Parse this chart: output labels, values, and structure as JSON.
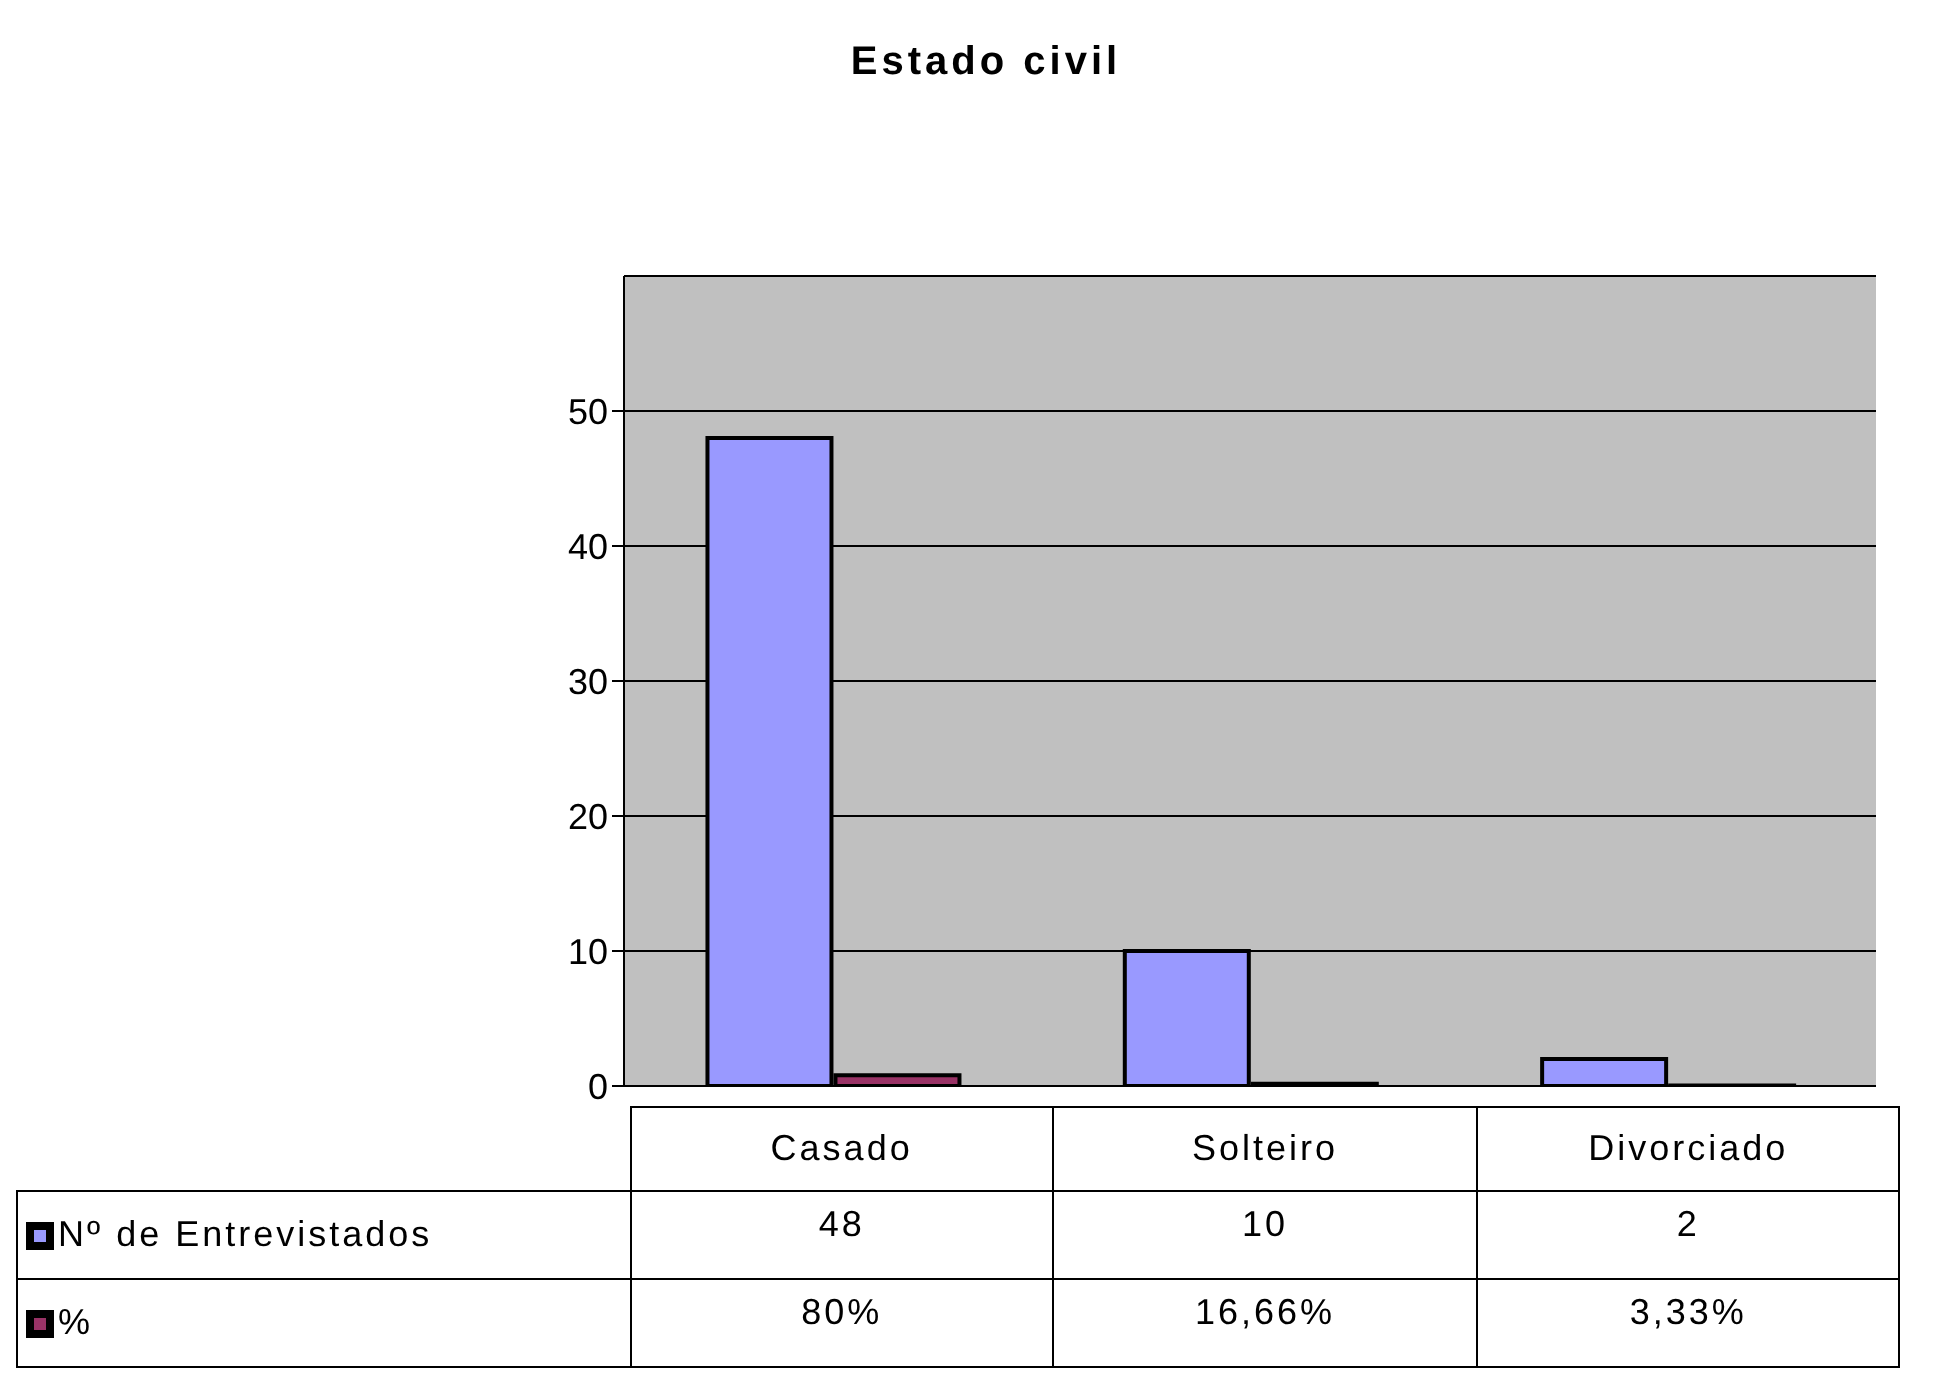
{
  "chart_data": {
    "type": "bar",
    "title": "Estado civil",
    "categories": [
      "Casado",
      "Solteiro",
      "Divorciado"
    ],
    "series": [
      {
        "name": "Nº de Entrevistados",
        "color": "#9999ff",
        "values": [
          48,
          10,
          2
        ],
        "value_labels": [
          "48",
          "10",
          "2"
        ]
      },
      {
        "name": "%",
        "color": "#993366",
        "values": [
          0.8,
          0.1666,
          0.0333
        ],
        "value_labels": [
          "80%",
          "16,66%",
          "3,33%"
        ]
      }
    ],
    "ylim": [
      0,
      60
    ],
    "yticks": [
      0,
      10,
      20,
      30,
      40,
      50
    ],
    "grid": "y",
    "legend": "bottom left"
  }
}
